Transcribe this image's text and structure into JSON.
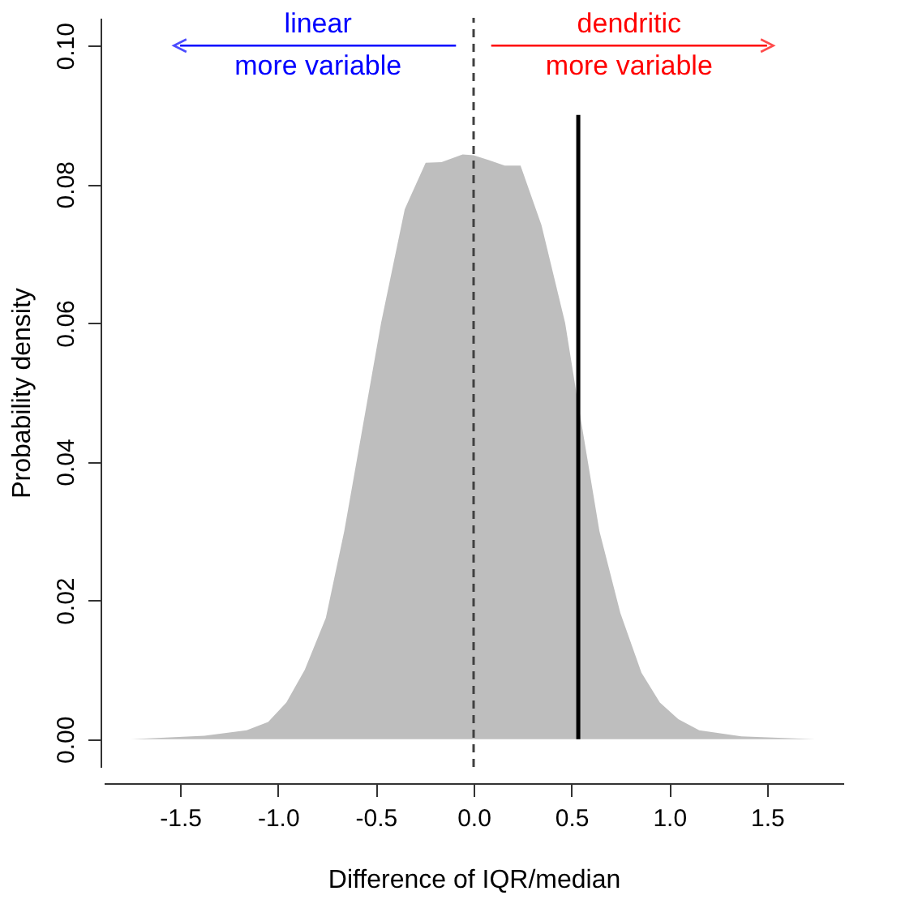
{
  "chart_data": {
    "type": "area",
    "xlabel": "Difference of IQR/median",
    "ylabel": "Probability density",
    "xlim": [
      -1.89,
      1.89
    ],
    "ylim": [
      -0.004,
      0.104
    ],
    "xticks": [
      -1.5,
      {
        "value": -1,
        "label": "-1.0"
      },
      -0.5,
      {
        "value": 0,
        "label": "0.0"
      },
      0.5,
      {
        "value": 1,
        "label": "1.0"
      },
      1.5
    ],
    "yticks": [
      {
        "value": 0,
        "label": "0.00"
      },
      0.02,
      0.04,
      0.06,
      0.08,
      {
        "value": 0.1,
        "label": "0.10"
      }
    ],
    "series": [
      {
        "color": "#bebebe",
        "x": [
          -1.75,
          -1.375,
          -1.16,
          -1.05,
          -0.957,
          -0.863,
          -0.755,
          -0.661,
          -0.567,
          -0.473,
          -0.352,
          -0.245,
          -0.164,
          -0.056,
          0,
          0.078,
          0.159,
          0.24,
          0.347,
          0.468,
          0.522,
          0.643,
          0.75,
          0.858,
          0.952,
          1.046,
          1.153,
          1.368,
          1.745
        ],
        "values": [
          0,
          0.0005,
          0.0013,
          0.0025,
          0.0053,
          0.01,
          0.0175,
          0.03,
          0.045,
          0.06,
          0.0764,
          0.0831,
          0.0832,
          0.0843,
          0.0842,
          0.0835,
          0.0827,
          0.0827,
          0.0741,
          0.06,
          0.0505,
          0.03,
          0.0182,
          0.0096,
          0.0053,
          0.0029,
          0.0013,
          0.0004,
          0
        ]
      },
      {
        "type": "line",
        "color": "#000000",
        "x": [
          0.535,
          0.535
        ],
        "values": [
          0,
          0.09
        ]
      }
    ],
    "ref_lines": [
      {
        "axis": "x",
        "value": 0,
        "line_style": "dashed",
        "color": "#404040"
      }
    ],
    "annotations": [
      {
        "text": "linear more variable",
        "x": -1.5,
        "y": 0.1
      },
      {
        "text": "dendritic more variable",
        "x": 1.5,
        "y": 0.1
      }
    ],
    "grid": false
  }
}
